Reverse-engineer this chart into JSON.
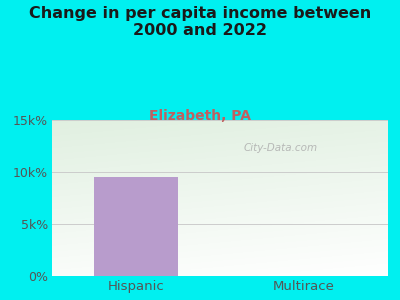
{
  "title": "Change in per capita income between\n2000 and 2022",
  "subtitle": "Elizabeth, PA",
  "categories": [
    "Hispanic",
    "Multirace"
  ],
  "values": [
    9500,
    0
  ],
  "bar_color": "#b89ccc",
  "title_fontsize": 11.5,
  "subtitle_fontsize": 10,
  "subtitle_color": "#c06060",
  "tick_label_color": "#555555",
  "background_color": "#00f0f0",
  "plot_bg_topleft": "#d8ecd0",
  "plot_bg_topright": "#eaf5f5",
  "plot_bg_bottom": "#f8fff8",
  "ylim": [
    0,
    15000
  ],
  "yticks": [
    0,
    5000,
    10000,
    15000
  ],
  "ytick_labels": [
    "0%",
    "5k%",
    "10k%",
    "15k%"
  ],
  "watermark": "City-Data.com"
}
